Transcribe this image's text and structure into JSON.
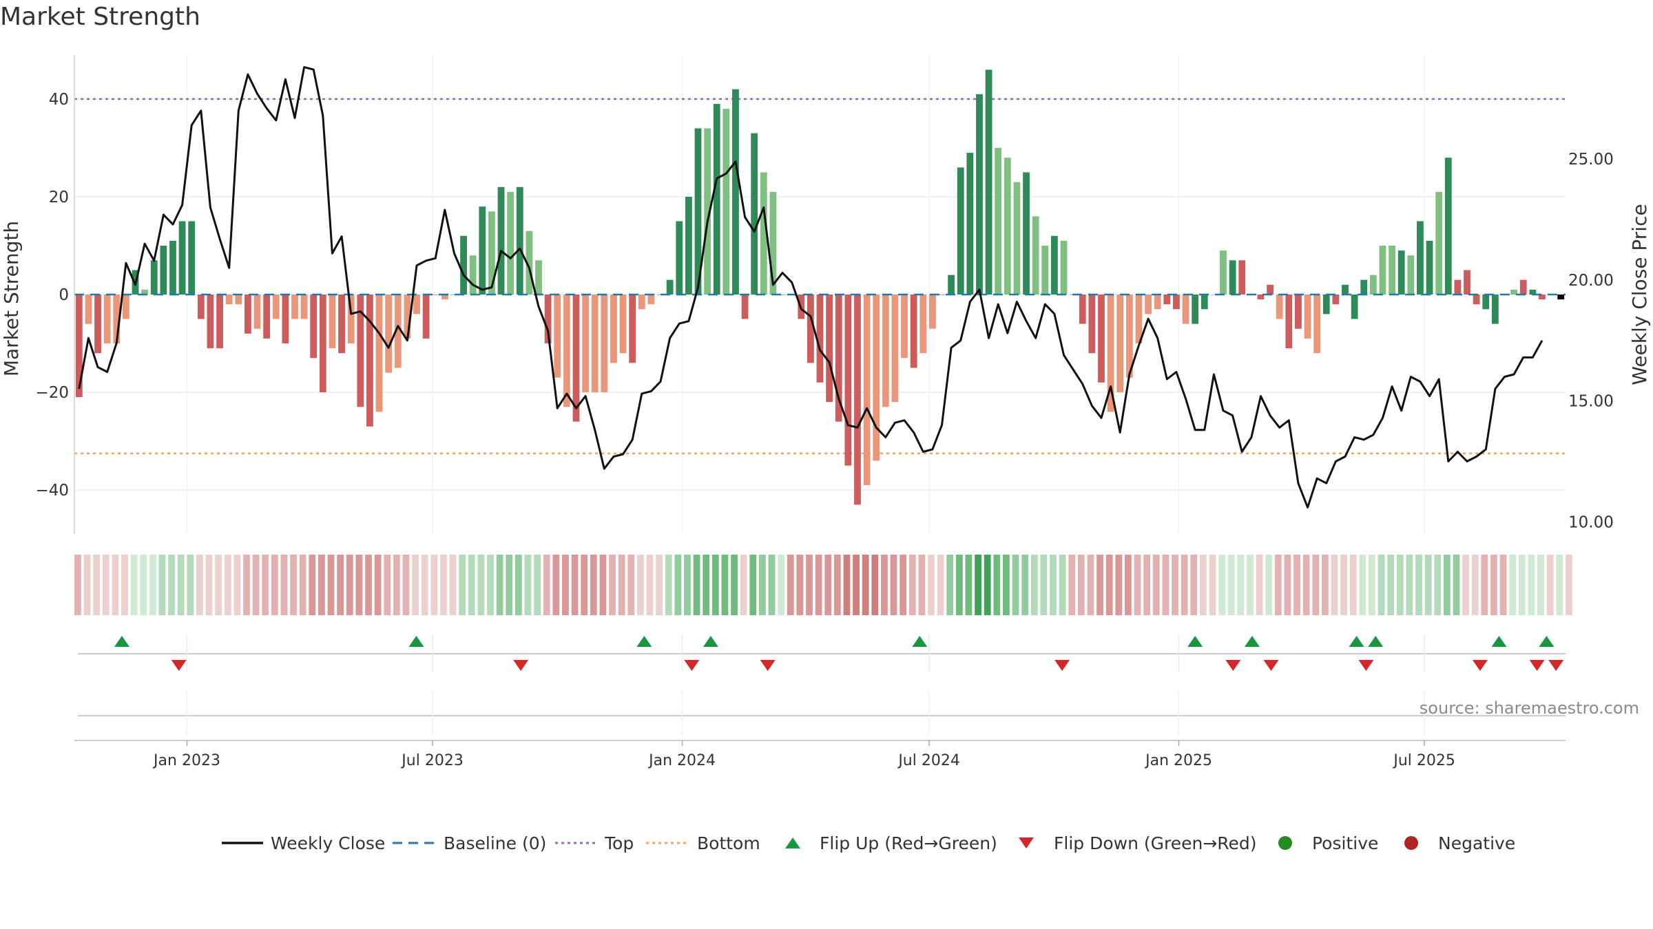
{
  "title": "Market Strength",
  "source": "source: sharemaestro.com",
  "colors": {
    "strong_green": "#2e8b57",
    "light_green": "#7fbf7f",
    "strong_red": "#cd5c5c",
    "light_red": "#e9967a",
    "line": "#111111",
    "baseline": "#1f77b4",
    "top": "#9467bd",
    "bottom": "#f4a460",
    "flip_up": "#1a9641",
    "flip_down": "#d62728",
    "positive": "#228b22",
    "negative": "#b22222"
  },
  "chart_data": {
    "type": "bar",
    "title": "Market Strength",
    "ylabel_left": "Market Strength",
    "ylabel_right": "Weekly Close Price",
    "ylim_left": [
      -49,
      49
    ],
    "yticks_left": [
      40,
      20,
      0,
      -20,
      -40
    ],
    "ytick_labels_left": [
      "40",
      "20",
      "0",
      "−20",
      "−40"
    ],
    "ylim_right": [
      9.5,
      29.3
    ],
    "yticks_right": [
      25,
      20,
      15,
      10
    ],
    "ytick_labels_right": [
      "25.00",
      "20.00",
      "15.00",
      "10.00"
    ],
    "x_range": [
      "2022-10-10",
      "2025-10-13"
    ],
    "x_ticks": [
      "2023-01-01",
      "2023-07-01",
      "2024-01-01",
      "2024-07-01",
      "2025-01-01",
      "2025-07-01"
    ],
    "x_tick_labels": [
      "Jan 2023",
      "Jul 2023",
      "Jan 2024",
      "Jul 2024",
      "Jan 2025",
      "Jul 2025"
    ],
    "top_level": 40,
    "bottom_level": -32.5,
    "baseline": 0,
    "strength": [
      -21,
      -6,
      -12,
      -10,
      -10,
      -5,
      5,
      1,
      7,
      10,
      11,
      15,
      15,
      -5,
      -11,
      -11,
      -2,
      -2,
      -8,
      -7,
      -9,
      -5,
      -10,
      -5,
      -5,
      -13,
      -20,
      -11,
      -12,
      -10,
      -23,
      -27,
      -24,
      -16,
      -15,
      -9,
      -4,
      -9,
      0,
      -1,
      0,
      12,
      8,
      18,
      17,
      22,
      21,
      22,
      13,
      7,
      -10,
      -17,
      -23,
      -26,
      -20,
      -20,
      -20,
      -14,
      -12,
      -14,
      -3,
      -2,
      0,
      3,
      15,
      20,
      34,
      34,
      39,
      38,
      42,
      -5,
      33,
      25,
      21,
      0,
      0,
      -5,
      -14,
      -18,
      -22,
      -26,
      -35,
      -43,
      -39,
      -34,
      -23,
      -22,
      -13,
      -15,
      -12,
      -7,
      0,
      4,
      26,
      29,
      41,
      46,
      30,
      28,
      23,
      25,
      16,
      10,
      12,
      11,
      0,
      -6,
      -12,
      -18,
      -24,
      -20,
      -17,
      -10,
      -4,
      -3,
      -2,
      -3,
      -6,
      -6,
      -3,
      0,
      9,
      7,
      7,
      0,
      -1,
      2,
      -5,
      -11,
      -7,
      -9,
      -12,
      -4,
      -2,
      2,
      -5,
      3,
      4,
      10,
      10,
      9,
      8,
      15,
      11,
      21,
      28,
      3,
      5,
      -2,
      -3,
      -6,
      0,
      1,
      3,
      1,
      -1,
      0,
      -1
    ],
    "strength_colors": [
      "sr",
      "lr",
      "sr",
      "lr",
      "lr",
      "lr",
      "sg",
      "lg",
      "sg",
      "sg",
      "sg",
      "sg",
      "sg",
      "sr",
      "sr",
      "sr",
      "lr",
      "lr",
      "sr",
      "lr",
      "sr",
      "lr",
      "sr",
      "lr",
      "lr",
      "sr",
      "sr",
      "lr",
      "sr",
      "lr",
      "sr",
      "sr",
      "lr",
      "lr",
      "lr",
      "lr",
      "lr",
      "sr",
      "sg",
      "lr",
      "sg",
      "sg",
      "lg",
      "sg",
      "lg",
      "sg",
      "lg",
      "sg",
      "lg",
      "lg",
      "sr",
      "lr",
      "lr",
      "sr",
      "lr",
      "lr",
      "lr",
      "lr",
      "lr",
      "sr",
      "lr",
      "lr",
      "sg",
      "sg",
      "sg",
      "sg",
      "sg",
      "lg",
      "sg",
      "lg",
      "sg",
      "sr",
      "sg",
      "lg",
      "lg",
      "sg",
      "lg",
      "sr",
      "sr",
      "sr",
      "sr",
      "sr",
      "sr",
      "sr",
      "lr",
      "lr",
      "lr",
      "lr",
      "lr",
      "sr",
      "lr",
      "lr",
      "sg",
      "sg",
      "sg",
      "sg",
      "sg",
      "sg",
      "lg",
      "lg",
      "lg",
      "sg",
      "lg",
      "lg",
      "sg",
      "lg",
      "sr",
      "sr",
      "sr",
      "sr",
      "lr",
      "lr",
      "lr",
      "lr",
      "lr",
      "lr",
      "sr",
      "sr",
      "lr",
      "sg",
      "sg",
      "lg",
      "lg",
      "sg",
      "sr",
      "lg",
      "sr",
      "sr",
      "lr",
      "sr",
      "sr",
      "lr",
      "lr",
      "sg",
      "sr",
      "sg",
      "sg",
      "sg",
      "lg",
      "lg",
      "lg",
      "sg",
      "lg",
      "sg",
      "sg",
      "lg",
      "sg",
      "sr",
      "sr",
      "sr",
      "sg",
      "sg",
      "sg",
      "lg",
      "sr",
      "sg",
      "sr"
    ],
    "weekly_close": [
      15.5,
      17.6,
      16.4,
      16.2,
      17.4,
      20.7,
      19.8,
      21.5,
      20.8,
      22.7,
      22.3,
      23.1,
      26.4,
      27.0,
      23.0,
      21.7,
      20.5,
      27.0,
      28.5,
      27.7,
      27.1,
      26.6,
      28.3,
      26.7,
      28.8,
      28.7,
      26.8,
      21.1,
      21.8,
      18.6,
      18.7,
      18.3,
      17.8,
      17.2,
      18.1,
      17.5,
      20.6,
      20.8,
      20.9,
      22.9,
      21.1,
      20.2,
      19.8,
      19.6,
      19.7,
      21.2,
      20.9,
      21.3,
      20.5,
      18.9,
      17.9,
      14.7,
      15.3,
      14.7,
      15.2,
      13.8,
      12.2,
      12.7,
      12.8,
      13.4,
      15.3,
      15.4,
      15.8,
      17.6,
      18.2,
      18.3,
      19.7,
      22.4,
      24.2,
      24.4,
      24.9,
      22.6,
      22.0,
      23.0,
      19.8,
      20.3,
      19.9,
      18.8,
      18.5,
      17.1,
      16.6,
      15.1,
      14.0,
      13.9,
      14.7,
      13.9,
      13.5,
      14.1,
      14.2,
      13.7,
      12.9,
      13.0,
      14.0,
      17.2,
      17.5,
      19.1,
      19.6,
      17.6,
      19.0,
      17.8,
      19.1,
      18.3,
      17.6,
      19.0,
      18.6,
      16.9,
      16.3,
      15.7,
      14.8,
      14.3,
      15.6,
      13.7,
      16.1,
      17.3,
      18.4,
      17.6,
      15.9,
      16.2,
      15.1,
      13.8,
      13.8,
      16.1,
      14.6,
      14.4,
      12.9,
      13.5,
      15.2,
      14.4,
      13.9,
      14.2,
      11.6,
      10.6,
      11.8,
      11.6,
      12.5,
      12.7,
      13.5,
      13.4,
      13.6,
      14.3,
      15.6,
      14.6,
      16.0,
      15.8,
      15.2,
      15.9,
      12.5,
      12.9,
      12.5,
      12.7,
      13.0,
      15.5,
      16.0,
      16.1,
      16.8,
      16.8,
      17.5
    ],
    "heatmap_levels": [
      -2,
      -1,
      -1,
      -1,
      -1,
      -1,
      1,
      1,
      1,
      2,
      2,
      2,
      2,
      -1,
      -1,
      -1,
      -1,
      -1,
      -2,
      -2,
      -2,
      -2,
      -2,
      -2,
      -2,
      -3,
      -3,
      -3,
      -3,
      -3,
      -3,
      -3,
      -3,
      -2,
      -2,
      -2,
      -1,
      -1,
      -1,
      -1,
      -1,
      2,
      2,
      2,
      2,
      3,
      3,
      3,
      2,
      2,
      -2,
      -3,
      -3,
      -3,
      -3,
      -3,
      -3,
      -2,
      -2,
      -2,
      -1,
      -1,
      -1,
      2,
      3,
      3,
      4,
      4,
      4,
      4,
      4,
      -1,
      4,
      3,
      3,
      1,
      -3,
      -3,
      -3,
      -3,
      -3,
      -3,
      -4,
      -4,
      -4,
      -4,
      -3,
      -3,
      -3,
      -2,
      -2,
      -1,
      -1,
      3,
      4,
      4,
      5,
      5,
      4,
      4,
      3,
      3,
      2,
      2,
      2,
      2,
      -2,
      -2,
      -2,
      -3,
      -3,
      -3,
      -3,
      -2,
      -2,
      -2,
      -2,
      -2,
      -2,
      -2,
      -1,
      -1,
      1,
      1,
      1,
      1,
      -1,
      1,
      -2,
      -2,
      -2,
      -2,
      -2,
      -2,
      -1,
      -1,
      -1,
      1,
      1,
      2,
      2,
      2,
      2,
      2,
      2,
      2,
      3,
      3,
      -1,
      -1,
      -2,
      -2,
      -2,
      1,
      1,
      1,
      1,
      -1,
      1,
      -1
    ],
    "flip_up_dates": [
      "2022-11-14",
      "2023-06-19",
      "2023-12-04",
      "2024-01-22",
      "2024-06-24",
      "2025-01-13",
      "2025-02-24",
      "2025-05-12",
      "2025-05-26",
      "2025-08-25",
      "2025-09-29"
    ],
    "flip_down_dates": [
      "2022-12-26",
      "2023-09-04",
      "2024-01-08",
      "2024-03-04",
      "2024-10-07",
      "2025-02-10",
      "2025-03-10",
      "2025-05-19",
      "2025-08-11",
      "2025-09-22",
      "2025-10-06"
    ],
    "legend": [
      "Weekly Close",
      "Baseline (0)",
      "Top",
      "Bottom",
      "Flip Up (Red→Green)",
      "Flip Down (Green→Red)",
      "Positive",
      "Negative"
    ]
  }
}
